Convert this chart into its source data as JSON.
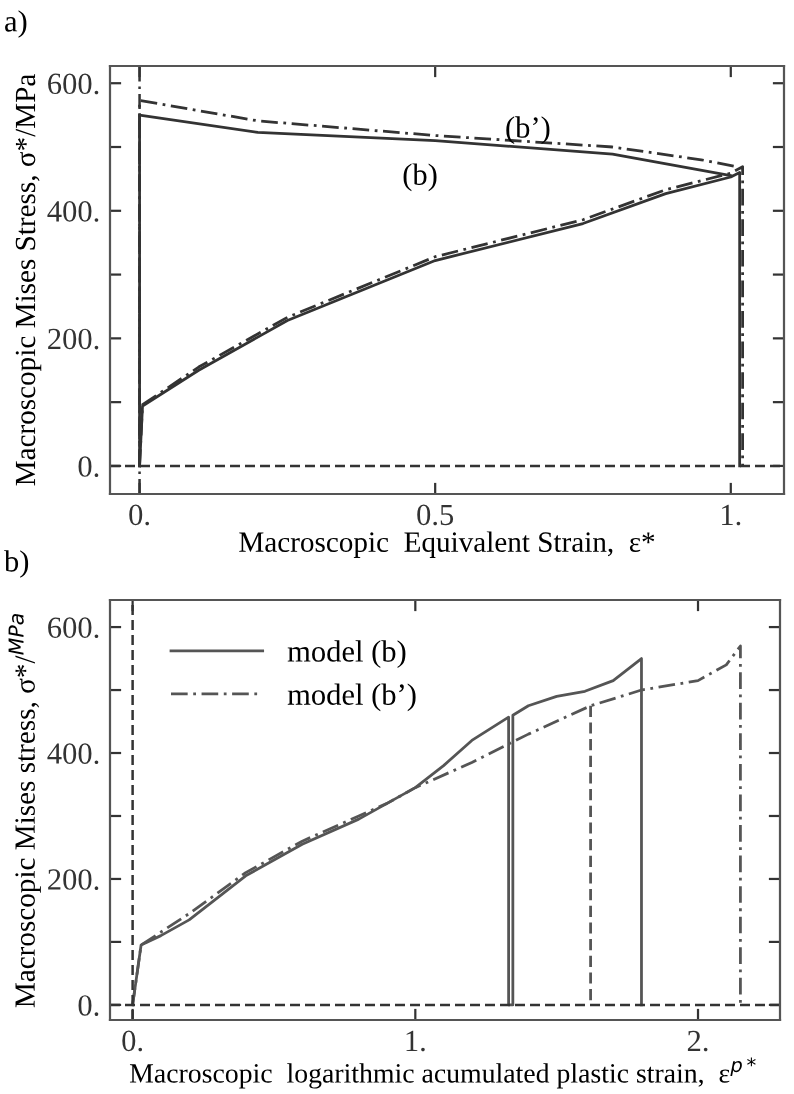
{
  "chart_data": [
    {
      "type": "line",
      "title": "a)",
      "xlabel": "Macroscopic  Equivalent Strain,  ε*",
      "ylabel": "Macroscopic Mises Stress, σ*/MPa",
      "xlim": [
        -0.05,
        1.09
      ],
      "ylim": [
        -44,
        627
      ],
      "xticks": [
        {
          "value": 0,
          "label": "0."
        },
        {
          "value": 0.5,
          "label": "0.5"
        },
        {
          "value": 1,
          "label": "1."
        }
      ],
      "yticks": [
        {
          "value": 0,
          "label": "0."
        },
        {
          "value": 100,
          "label": null
        },
        {
          "value": 200,
          "label": "200."
        },
        {
          "value": 300,
          "label": null
        },
        {
          "value": 400,
          "label": "400."
        },
        {
          "value": 500,
          "label": null
        },
        {
          "value": 600,
          "label": "600."
        }
      ],
      "grid": false,
      "legend": false,
      "series": [
        {
          "color": "#333333",
          "line_style": "solid",
          "x": [
            0,
            0.005,
            0.1,
            0.25,
            0.5,
            0.75,
            0.89,
            1.0,
            1.015,
            1.015
          ],
          "values": [
            0,
            94,
            150,
            228,
            322,
            380,
            427,
            453,
            460,
            0
          ]
        },
        {
          "color": "#333333",
          "line_style": "solid",
          "x": [
            0,
            0,
            0.2,
            0.5,
            0.8,
            1.0
          ],
          "values": [
            0,
            550,
            523,
            510,
            489,
            455
          ]
        },
        {
          "color": "#333333",
          "line_style": "dashdot",
          "x": [
            0,
            0.005,
            0.1,
            0.25,
            0.5,
            0.75,
            0.89,
            1.0,
            1.02,
            1.02
          ],
          "values": [
            0,
            96,
            155,
            233,
            328,
            386,
            433,
            459,
            469,
            0
          ]
        },
        {
          "color": "#333333",
          "line_style": "dashdot",
          "x": [
            0,
            0,
            0.2,
            0.5,
            0.8,
            0.95,
            1.01
          ],
          "values": [
            0,
            573,
            541,
            518,
            500,
            480,
            469
          ]
        }
      ],
      "ref_lines": [
        {
          "axis": "y",
          "value": 0,
          "color": "#333333",
          "line_style": "dashed"
        },
        {
          "axis": "x",
          "value": 0,
          "color": "#333333",
          "line_style": "dashdot"
        }
      ],
      "annotations": [
        "(b’)",
        "(b)"
      ]
    },
    {
      "type": "line",
      "title": "b)",
      "xlabel": "Macroscopic  logarithmic acumulated plastic strain,  ε$^{p*}$",
      "ylabel": "Macroscopic Mises stress, σ*/$^{MPa}$",
      "xlim": [
        -0.08,
        2.29
      ],
      "ylim": [
        -24,
        643
      ],
      "xticks": [
        {
          "value": 0,
          "label": "0."
        },
        {
          "value": 1,
          "label": "1."
        },
        {
          "value": 2,
          "label": "2."
        }
      ],
      "yticks": [
        {
          "value": 0,
          "label": "0."
        },
        {
          "value": 100,
          "label": null
        },
        {
          "value": 200,
          "label": "200."
        },
        {
          "value": 300,
          "label": null
        },
        {
          "value": 400,
          "label": "400."
        },
        {
          "value": 500,
          "label": null
        },
        {
          "value": 600,
          "label": "600."
        }
      ],
      "grid": false,
      "legend": "top left",
      "series": [
        {
          "name": "model (b)",
          "color": "#555555",
          "line_style": "solid",
          "x": [
            0,
            0.03,
            0.1,
            0.2,
            0.4,
            0.6,
            0.8,
            0.9,
            1.0,
            1.1,
            1.2,
            1.33,
            1.33,
            1.345,
            1.345,
            1.4,
            1.5,
            1.6,
            1.7,
            1.8,
            1.8
          ],
          "values": [
            0,
            95,
            110,
            135,
            205,
            255,
            295,
            320,
            345,
            380,
            420,
            457,
            0,
            0,
            460,
            475,
            490,
            498,
            515,
            550,
            0
          ]
        },
        {
          "name": "model (b’)",
          "color": "#555555",
          "line_style": "dashdot",
          "x": [
            0,
            0.03,
            0.2,
            0.4,
            0.6,
            0.8,
            0.9,
            1.0,
            1.2,
            1.4,
            1.62,
            1.8,
            2.0,
            2.1,
            2.15,
            2.15
          ],
          "values": [
            0,
            95,
            145,
            210,
            260,
            300,
            320,
            345,
            385,
            430,
            475,
            500,
            515,
            540,
            570,
            0
          ]
        },
        {
          "color": "#555555",
          "line_style": "dashed",
          "x": [
            1.62,
            1.62
          ],
          "values": [
            475,
            0
          ]
        }
      ],
      "ref_lines": [
        {
          "axis": "y",
          "value": 0,
          "color": "#333333",
          "line_style": "dashed"
        },
        {
          "axis": "x",
          "value": 0,
          "color": "#333333",
          "line_style": "dashed"
        }
      ]
    }
  ]
}
